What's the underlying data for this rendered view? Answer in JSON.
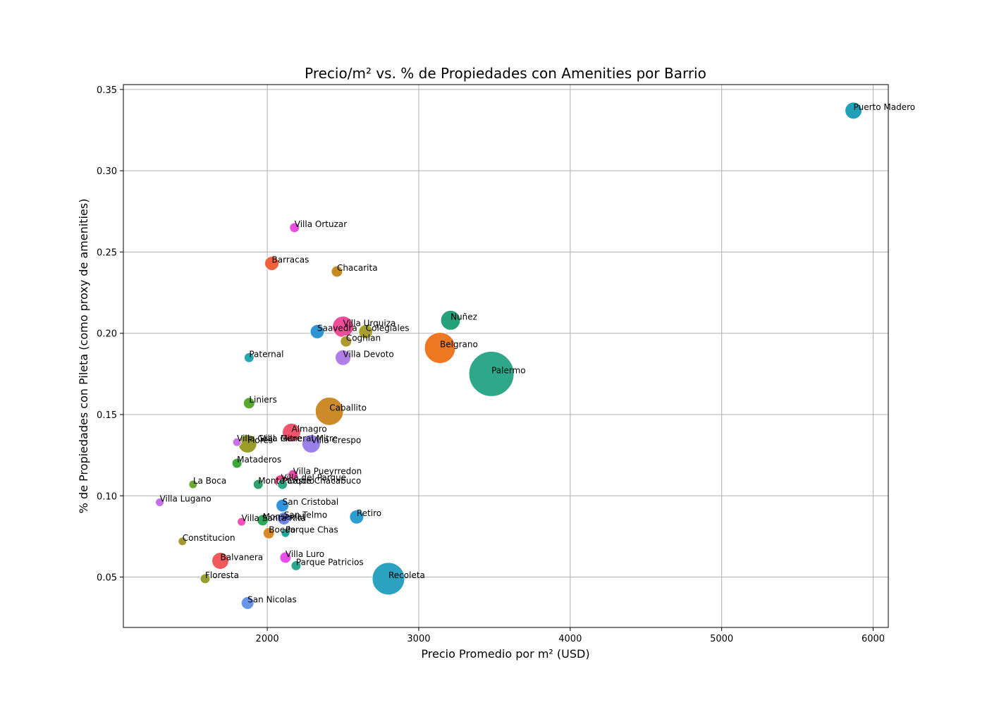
{
  "chart_data": {
    "type": "scatter",
    "title": "Precio/m² vs. % de Propiedades con Amenities por Barrio",
    "xlabel": "Precio Promedio por m² (USD)",
    "ylabel": "% de Propiedades con Pileta (como proxy de amenities)",
    "xlim": [
      1050,
      6100
    ],
    "ylim": [
      0.019,
      0.353
    ],
    "xticks": [
      2000,
      3000,
      4000,
      5000,
      6000
    ],
    "yticks": [
      0.05,
      0.1,
      0.15,
      0.2,
      0.25,
      0.3,
      0.35
    ],
    "ytick_labels": [
      "0.05",
      "0.10",
      "0.15",
      "0.20",
      "0.25",
      "0.30",
      "0.35"
    ],
    "grid": true,
    "size_encoding": "cantidad de propiedades",
    "points": [
      {
        "name": "Puerto Madero",
        "x": 5870,
        "y": 0.337,
        "size": 12,
        "color": "#22a0b8"
      },
      {
        "name": "Villa Ortuzar",
        "x": 2180,
        "y": 0.265,
        "size": 7,
        "color": "#e84ee0"
      },
      {
        "name": "Barracas",
        "x": 2030,
        "y": 0.243,
        "size": 10,
        "color": "#f0603a"
      },
      {
        "name": "Chacarita",
        "x": 2460,
        "y": 0.238,
        "size": 8,
        "color": "#c58a22"
      },
      {
        "name": "Nuñez",
        "x": 3210,
        "y": 0.208,
        "size": 14,
        "color": "#24a07a"
      },
      {
        "name": "Villa Urquiza",
        "x": 2500,
        "y": 0.204,
        "size": 15,
        "color": "#ee4d9a"
      },
      {
        "name": "Saavedra",
        "x": 2330,
        "y": 0.201,
        "size": 10,
        "color": "#2f95d4"
      },
      {
        "name": "Colegiales",
        "x": 2650,
        "y": 0.201,
        "size": 10,
        "color": "#a6a02c"
      },
      {
        "name": "Coghlan",
        "x": 2520,
        "y": 0.195,
        "size": 8,
        "color": "#b09a30"
      },
      {
        "name": "Belgrano",
        "x": 3140,
        "y": 0.191,
        "size": 22,
        "color": "#ee7722"
      },
      {
        "name": "Villa Devoto",
        "x": 2500,
        "y": 0.185,
        "size": 11,
        "color": "#b17de8"
      },
      {
        "name": "Paternal",
        "x": 1880,
        "y": 0.185,
        "size": 7,
        "color": "#28a6b2"
      },
      {
        "name": "Palermo",
        "x": 3480,
        "y": 0.175,
        "size": 32,
        "color": "#2fa88a"
      },
      {
        "name": "Liniers",
        "x": 1880,
        "y": 0.157,
        "size": 8,
        "color": "#5aa82c"
      },
      {
        "name": "Caballito",
        "x": 2410,
        "y": 0.152,
        "size": 20,
        "color": "#cc8a28"
      },
      {
        "name": "Almagro",
        "x": 2160,
        "y": 0.139,
        "size": 13,
        "color": "#f0566e"
      },
      {
        "name": "Villa Gral. Mitre",
        "x": 1800,
        "y": 0.133,
        "size": 6,
        "color": "#c874e8"
      },
      {
        "name": "Flores",
        "x": 1870,
        "y": 0.132,
        "size": 13,
        "color": "#9a9e28"
      },
      {
        "name": "Villa General Mitre",
        "x": 1950,
        "y": 0.133,
        "size": 0,
        "color": "#9a9e28"
      },
      {
        "name": "Villa Crespo",
        "x": 2290,
        "y": 0.132,
        "size": 13,
        "color": "#9a80ea"
      },
      {
        "name": "Mataderos",
        "x": 1800,
        "y": 0.12,
        "size": 7,
        "color": "#3ca83a"
      },
      {
        "name": "Villa Pueyrredon",
        "x": 2170,
        "y": 0.113,
        "size": 7,
        "color": "#e84aae"
      },
      {
        "name": "Villa del Parque",
        "x": 2090,
        "y": 0.109,
        "size": 9,
        "color": "#ee4c88"
      },
      {
        "name": "Parque Chacabuco",
        "x": 2100,
        "y": 0.107,
        "size": 7,
        "color": "#2ba884"
      },
      {
        "name": "Monte Castro",
        "x": 1940,
        "y": 0.107,
        "size": 7,
        "color": "#2fa06c"
      },
      {
        "name": "La Boca",
        "x": 1510,
        "y": 0.107,
        "size": 6,
        "color": "#6aaa30"
      },
      {
        "name": "Villa Lugano",
        "x": 1290,
        "y": 0.096,
        "size": 6,
        "color": "#c86ee8"
      },
      {
        "name": "San Cristobal",
        "x": 2100,
        "y": 0.094,
        "size": 9,
        "color": "#2f93e0"
      },
      {
        "name": "Retiro",
        "x": 2590,
        "y": 0.087,
        "size": 10,
        "color": "#2a9ed0"
      },
      {
        "name": "San Telmo",
        "x": 2110,
        "y": 0.086,
        "size": 9,
        "color": "#6e86ee"
      },
      {
        "name": "Monserrat",
        "x": 1970,
        "y": 0.085,
        "size": 8,
        "color": "#2fa85a"
      },
      {
        "name": "Villa Santa Rita",
        "x": 1830,
        "y": 0.084,
        "size": 6,
        "color": "#ee50b8"
      },
      {
        "name": "Boedo",
        "x": 2010,
        "y": 0.077,
        "size": 8,
        "color": "#d88a2a"
      },
      {
        "name": "Parque Chas",
        "x": 2120,
        "y": 0.077,
        "size": 6,
        "color": "#22a89a"
      },
      {
        "name": "Constitucion",
        "x": 1440,
        "y": 0.072,
        "size": 6,
        "color": "#a49a30"
      },
      {
        "name": "Villa Luro",
        "x": 2120,
        "y": 0.062,
        "size": 8,
        "color": "#e64ee8"
      },
      {
        "name": "Balvanera",
        "x": 1690,
        "y": 0.06,
        "size": 12,
        "color": "#f05a5a"
      },
      {
        "name": "Parque Patricios",
        "x": 2190,
        "y": 0.057,
        "size": 7,
        "color": "#28a890"
      },
      {
        "name": "Recoleta",
        "x": 2800,
        "y": 0.049,
        "size": 23,
        "color": "#2aa2c0"
      },
      {
        "name": "Floresta",
        "x": 1590,
        "y": 0.049,
        "size": 7,
        "color": "#96a030"
      },
      {
        "name": "San Nicolas",
        "x": 1870,
        "y": 0.034,
        "size": 9,
        "color": "#6a94ea"
      }
    ]
  }
}
